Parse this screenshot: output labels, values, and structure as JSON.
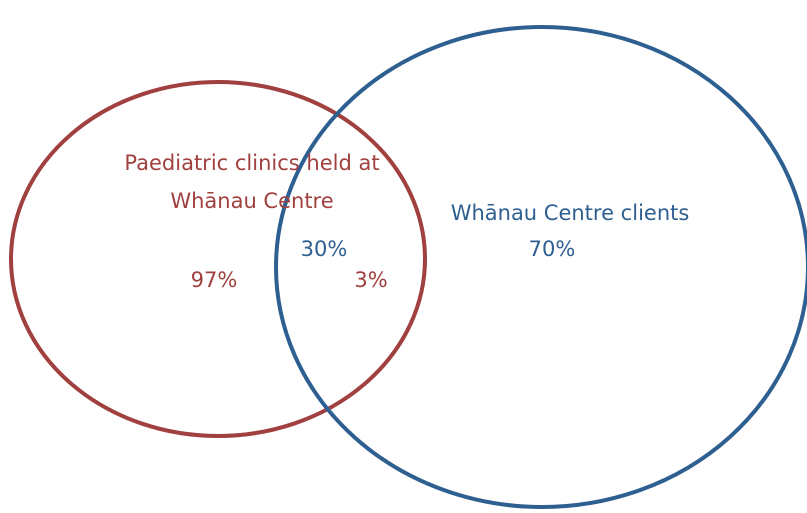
{
  "sets": [
    {
      "label_lines": [
        "Paediatric clinics held at",
        "Whānau Centre"
      ],
      "color": "#a0403f"
    },
    {
      "label_lines": [
        "Whānau Centre clients"
      ],
      "color": "#2e5f91"
    }
  ],
  "regions": [
    {
      "label": "97%",
      "set": 0
    },
    {
      "label": "3%",
      "set": 0
    },
    {
      "label": "30%",
      "set": 1
    },
    {
      "label": "70%",
      "set": 1
    }
  ]
}
